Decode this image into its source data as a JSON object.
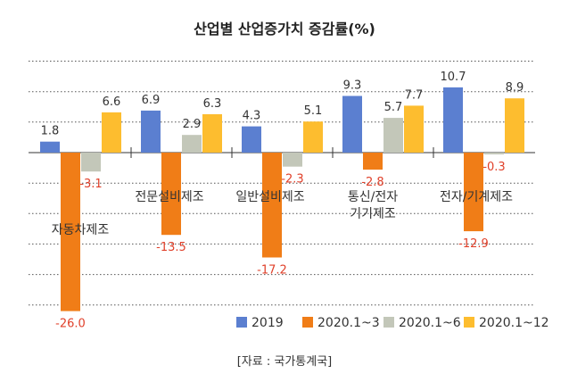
{
  "chart_data": {
    "type": "bar",
    "title": "산업별 산업증가치 증감률(%)",
    "categories": [
      {
        "lines": [
          "자동차제조"
        ]
      },
      {
        "lines": [
          "전문설비제조"
        ]
      },
      {
        "lines": [
          "일반설비제조"
        ]
      },
      {
        "lines": [
          "통신/전자",
          "기기제조"
        ]
      },
      {
        "lines": [
          "전자/기계제조"
        ]
      }
    ],
    "series": [
      {
        "name": "2019",
        "color": "#5b7fd0",
        "values": [
          1.8,
          6.9,
          4.3,
          9.3,
          10.7
        ]
      },
      {
        "name": "2020.1~3",
        "color": "#f07d17",
        "values": [
          -26.0,
          -13.5,
          -17.2,
          -2.8,
          -12.9
        ]
      },
      {
        "name": "2020.1~6",
        "color": "#c3c7b9",
        "values": [
          -3.1,
          2.9,
          -2.3,
          5.7,
          -0.3
        ]
      },
      {
        "name": "2020.1~12",
        "color": "#fdbd2f",
        "values": [
          6.6,
          6.3,
          5.1,
          7.7,
          8.9
        ]
      }
    ],
    "ylim": [
      -28,
      16
    ],
    "grid": true,
    "legend_position": "bottom-right",
    "negative_label_color": "#e0402a",
    "source": "[자료 : 국가통계국]"
  }
}
